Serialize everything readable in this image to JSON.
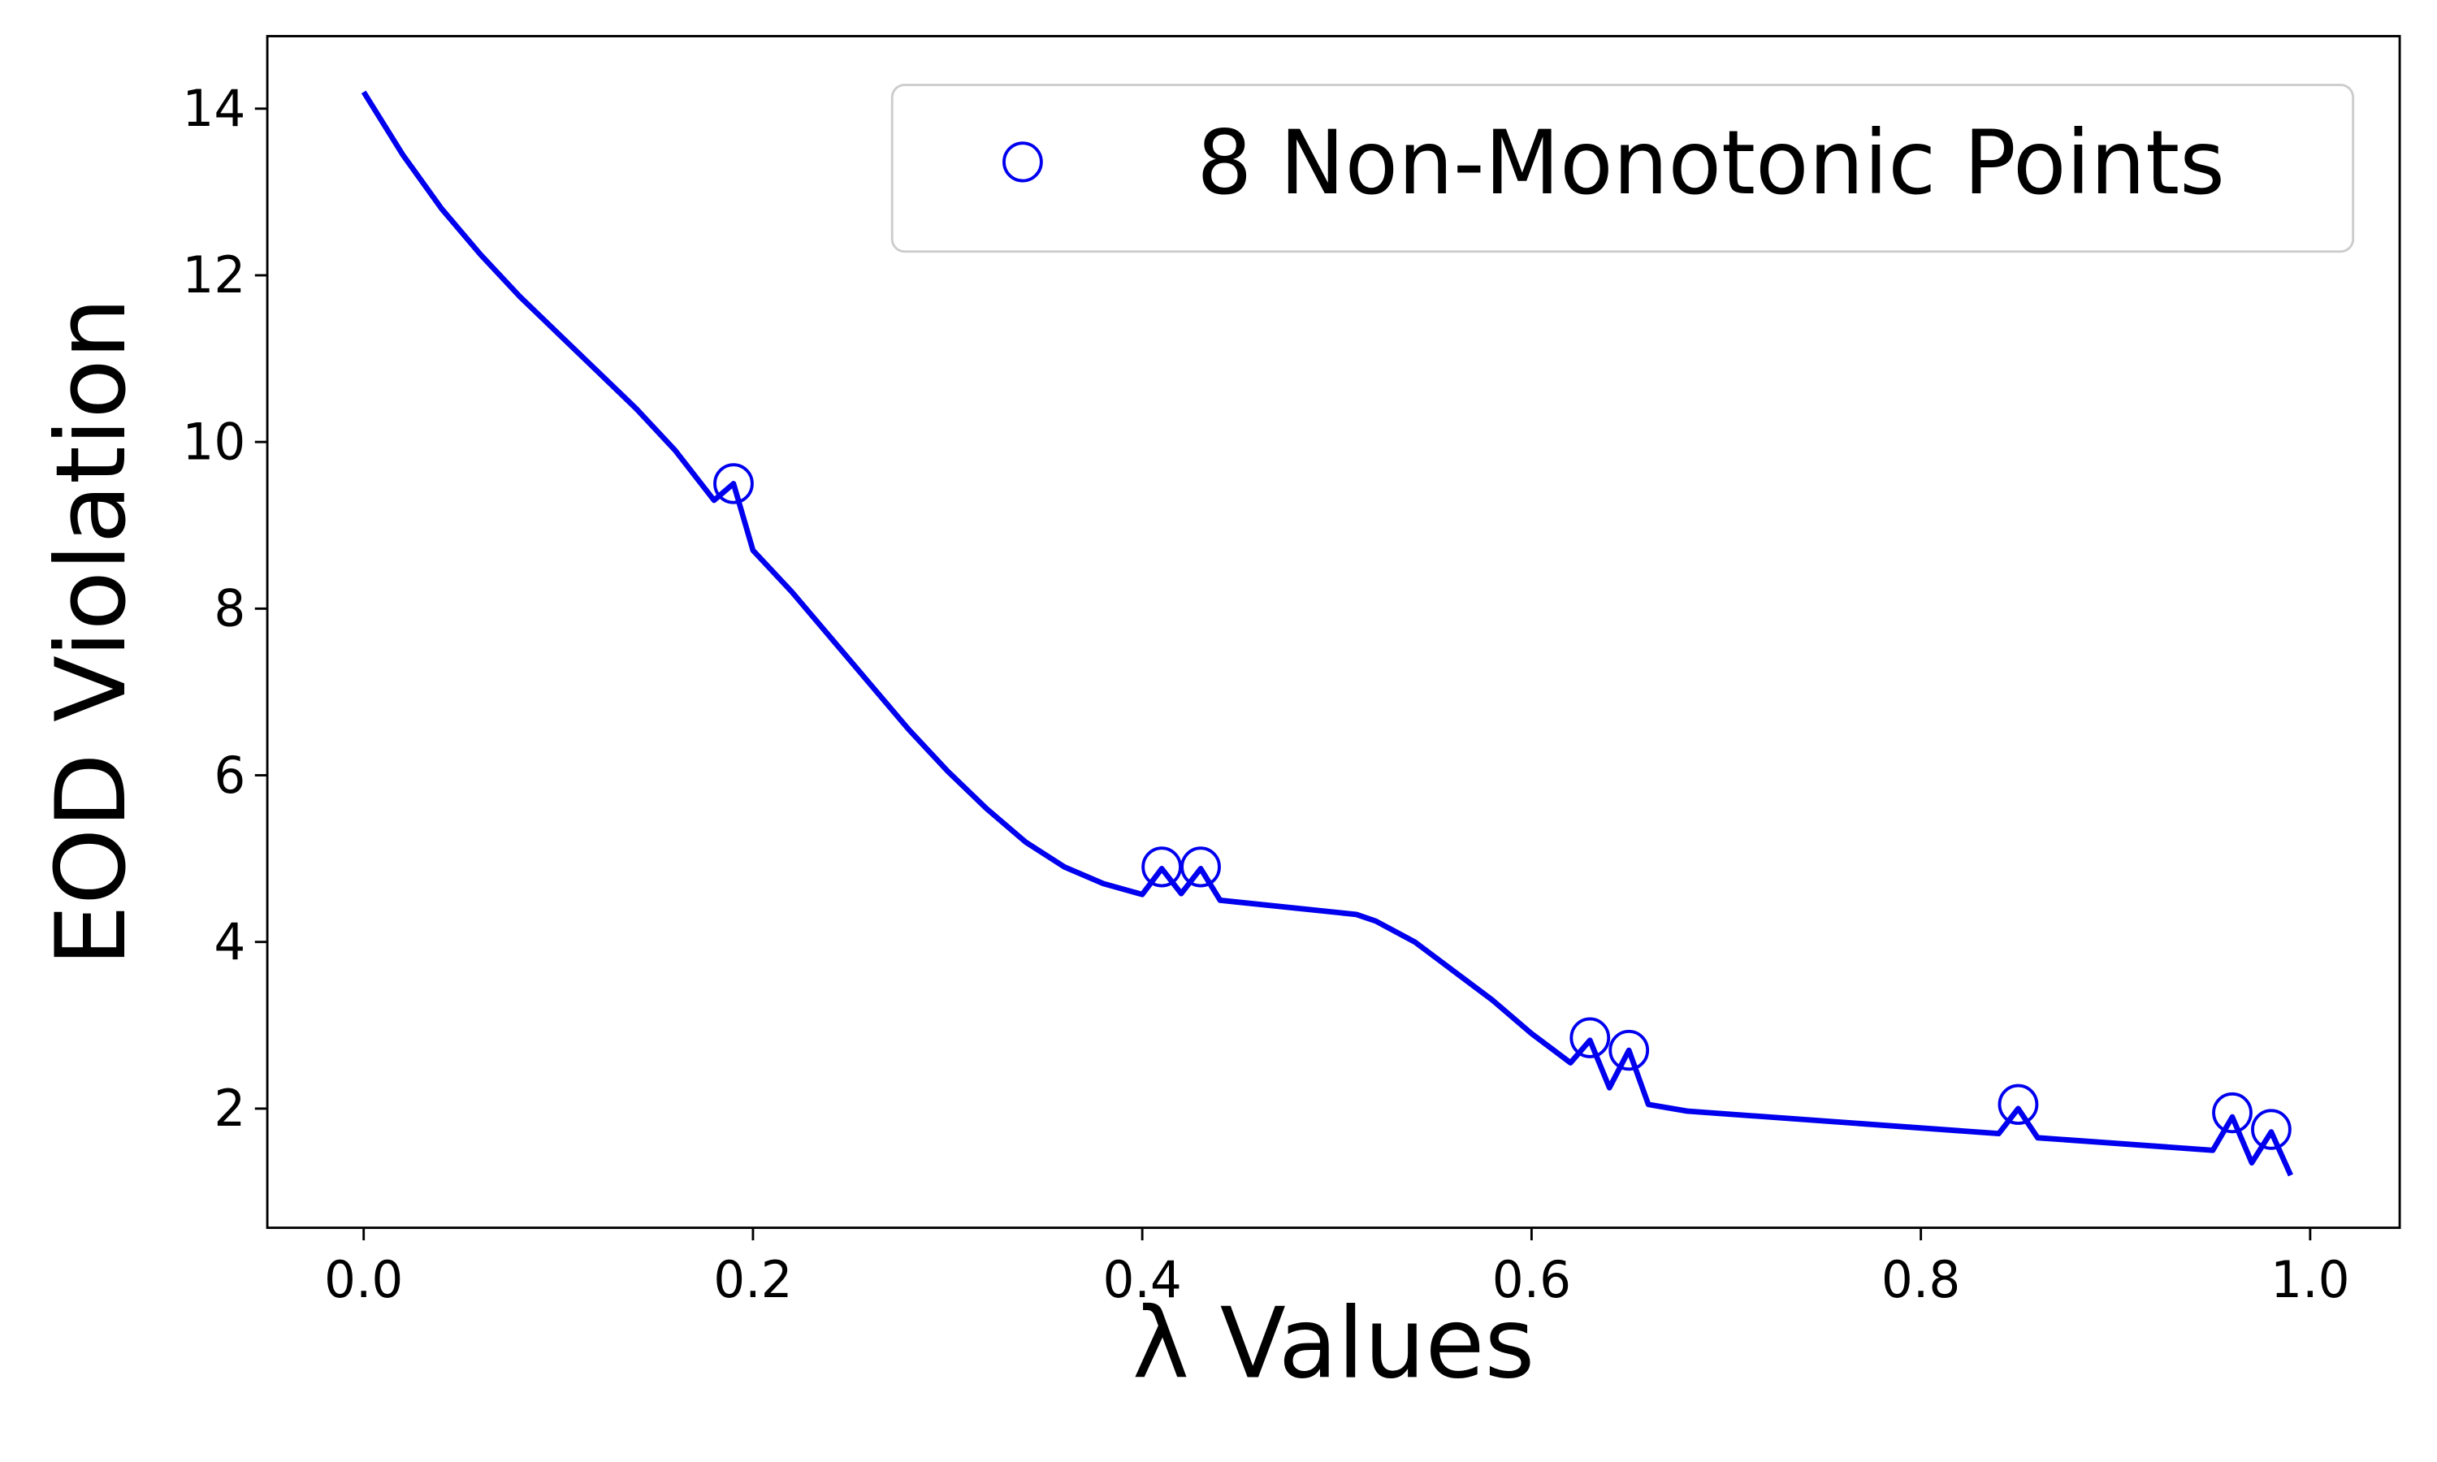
{
  "chart_data": {
    "type": "line",
    "x_label": "λ Values",
    "y_label": "EOD Violation",
    "x": [
      0.0,
      0.02,
      0.04,
      0.06,
      0.08,
      0.1,
      0.12,
      0.14,
      0.16,
      0.18,
      0.19,
      0.2,
      0.22,
      0.24,
      0.26,
      0.28,
      0.3,
      0.32,
      0.34,
      0.36,
      0.38,
      0.4,
      0.41,
      0.42,
      0.43,
      0.44,
      0.51,
      0.52,
      0.54,
      0.56,
      0.58,
      0.6,
      0.62,
      0.63,
      0.64,
      0.65,
      0.66,
      0.68,
      0.84,
      0.85,
      0.86,
      0.95,
      0.96,
      0.97,
      0.98,
      0.99
    ],
    "series": [
      {
        "color": "#0000ee",
        "values": [
          14.2,
          13.45,
          12.8,
          12.25,
          11.75,
          11.3,
          10.85,
          10.4,
          9.9,
          9.3,
          9.5,
          8.7,
          8.2,
          7.65,
          7.1,
          6.55,
          6.05,
          5.6,
          5.2,
          4.9,
          4.7,
          4.57,
          4.88,
          4.58,
          4.88,
          4.5,
          4.33,
          4.25,
          4.0,
          3.65,
          3.3,
          2.9,
          2.55,
          2.82,
          2.25,
          2.7,
          2.05,
          1.97,
          1.7,
          2.0,
          1.65,
          1.5,
          1.9,
          1.35,
          1.72,
          1.2
        ]
      }
    ],
    "markers": {
      "name": "8 Non-Monotonic Points",
      "color": "#0000ee",
      "x": [
        0.19,
        0.41,
        0.43,
        0.63,
        0.65,
        0.85,
        0.96,
        0.98
      ],
      "values": [
        9.5,
        4.9,
        4.9,
        2.85,
        2.7,
        2.05,
        1.95,
        1.75
      ]
    },
    "xlim": [
      -0.0495,
      1.046
    ],
    "ylim": [
      0.57,
      14.87
    ],
    "xticks": [
      {
        "value": 0,
        "label": "0.0"
      },
      0.2,
      0.4,
      0.6,
      0.8,
      {
        "value": 1,
        "label": "1.0"
      }
    ],
    "yticks": [
      2,
      4,
      6,
      8,
      10,
      12,
      14
    ],
    "legend": "upper right"
  }
}
